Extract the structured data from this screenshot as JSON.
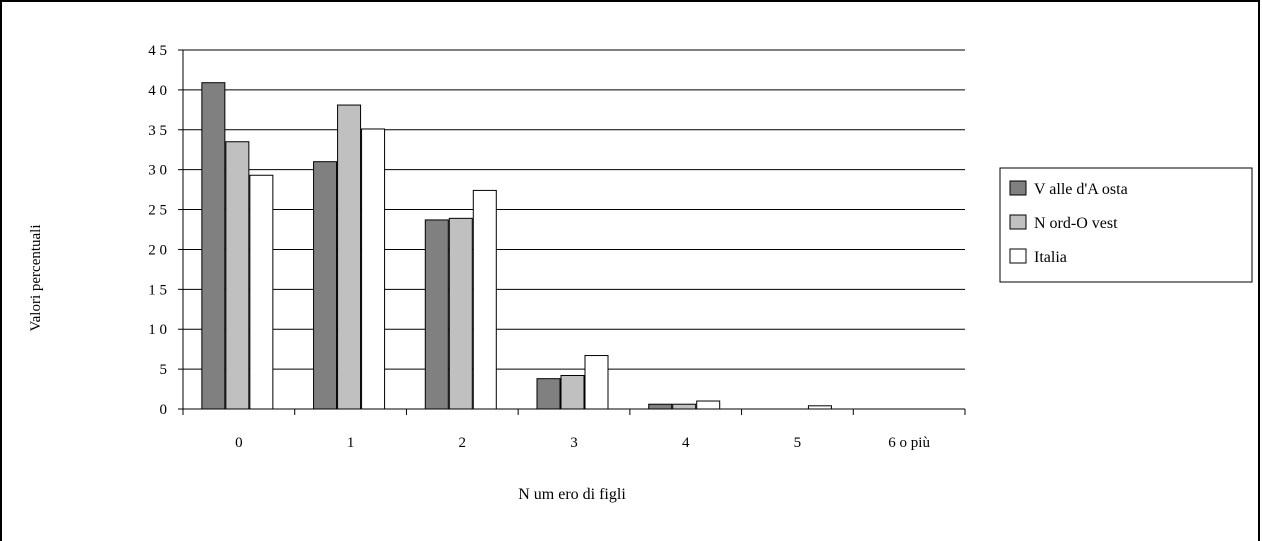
{
  "chart_data": {
    "type": "bar",
    "title": "",
    "xlabel": "N um ero di figli",
    "ylabel": "Valori percentuali",
    "categories": [
      "0",
      "1",
      "2",
      "3",
      "4",
      "5",
      "6 o più"
    ],
    "ylim": [
      0,
      45
    ],
    "yticks": [
      "0",
      "5",
      "1 0",
      "1 5",
      "2 0",
      "2 5",
      "3 0",
      "3 5",
      "4 0",
      "4 5"
    ],
    "grid": true,
    "legend_position": "right",
    "series": [
      {
        "name": "V alle d'A osta",
        "color": "#808080",
        "values": [
          40.9,
          31.0,
          23.7,
          3.8,
          0.6,
          0.0,
          0.0
        ]
      },
      {
        "name": "N ord-O vest",
        "color": "#c0c0c0",
        "values": [
          33.5,
          38.1,
          23.9,
          4.2,
          0.6,
          0.0,
          0.0
        ]
      },
      {
        "name": "Italia",
        "color": "#ffffff",
        "values": [
          29.3,
          35.1,
          27.4,
          6.7,
          1.0,
          0.4,
          0.0
        ]
      }
    ]
  }
}
